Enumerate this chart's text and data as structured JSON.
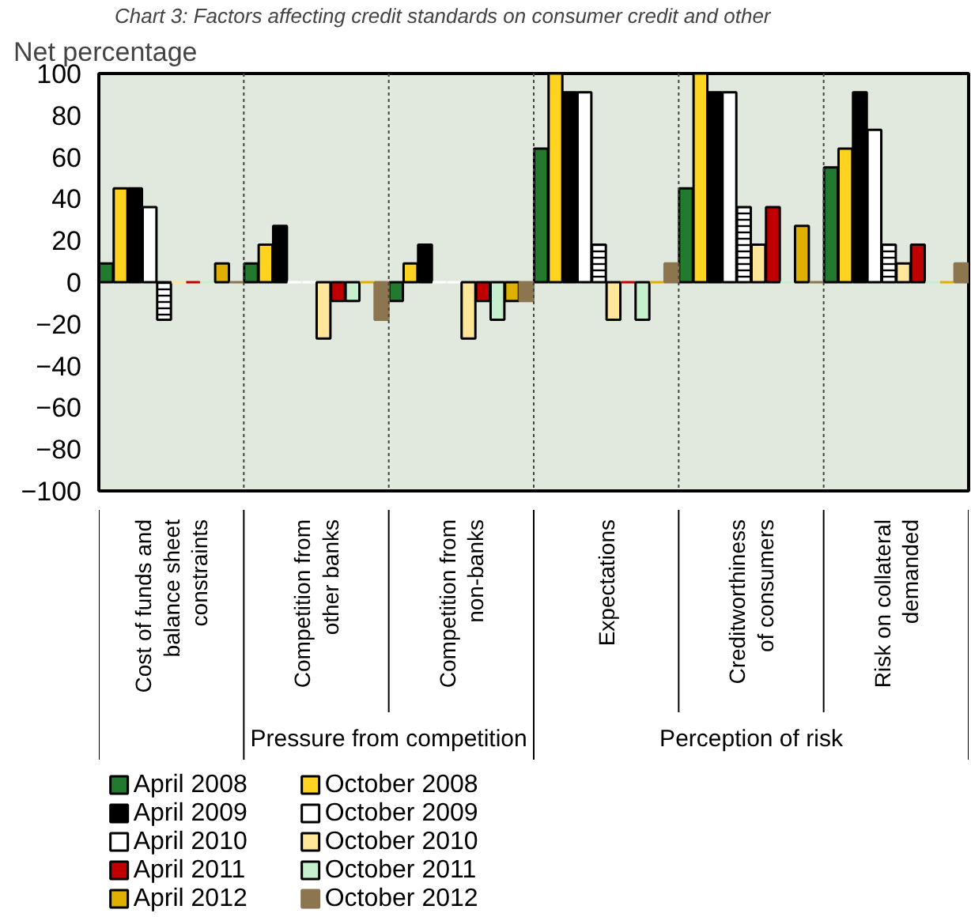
{
  "chart_data": {
    "type": "bar",
    "title": "Chart 3: Factors affecting credit standards on consumer credit and other",
    "ylabel": "Net percentage",
    "categories": [
      "Cost of funds and balance sheet constraints",
      "Competition from other banks",
      "Competition from non-banks",
      "Expectations",
      "Creditworthiness of consumers",
      "Risk on collateral demanded"
    ],
    "annotations": [
      "Pressure from competition",
      "Perception of risk"
    ],
    "ylim": [
      -100,
      100
    ],
    "yticks": [
      -100,
      -80,
      -60,
      -40,
      -20,
      0,
      20,
      40,
      60,
      80,
      100
    ],
    "grid": false,
    "legend": "bottom",
    "series": [
      {
        "name": "April 2008",
        "color": "#217a2e",
        "values": [
          9,
          9,
          -9,
          64,
          45,
          55
        ]
      },
      {
        "name": "October 2008",
        "color": "#ffd320",
        "values": [
          45,
          18,
          9,
          100,
          100,
          64
        ]
      },
      {
        "name": "April 2009",
        "color": "#000000",
        "values": [
          45,
          27,
          18,
          91,
          91,
          91
        ]
      },
      {
        "name": "October 2009",
        "color": "#ffffff",
        "values": [
          36,
          0,
          0,
          91,
          91,
          73
        ]
      },
      {
        "name": "April 2010",
        "color": "#ffffff",
        "values": [
          -18,
          0,
          0,
          18,
          36,
          18
        ]
      },
      {
        "name": "October 2010",
        "color": "#ffe699",
        "values": [
          0,
          -27,
          -27,
          -18,
          18,
          9
        ]
      },
      {
        "name": "April 2011",
        "color": "#c00000",
        "values": [
          0,
          -9,
          -9,
          0,
          36,
          18
        ]
      },
      {
        "name": "October 2011",
        "color": "#c6efce",
        "values": [
          0,
          -9,
          -18,
          -18,
          0,
          0
        ]
      },
      {
        "name": "April 2012",
        "color": "#e0b000",
        "values": [
          9,
          0,
          -9,
          0,
          27,
          0
        ]
      },
      {
        "name": "October 2012",
        "color": "#8b7650",
        "values": [
          0,
          -18,
          -9,
          9,
          0,
          9
        ]
      }
    ]
  }
}
